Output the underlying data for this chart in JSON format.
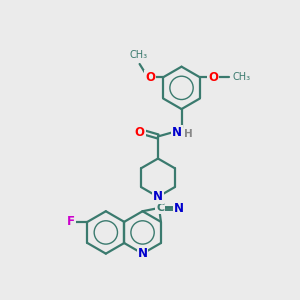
{
  "bg_color": "#ebebeb",
  "bond_color": "#3a7a6e",
  "atom_colors": {
    "O": "#ff0000",
    "N": "#0000cc",
    "F": "#cc00cc",
    "H": "#888888",
    "C": "#3a7a6e"
  },
  "line_width": 1.6,
  "fig_size": [
    3.0,
    3.0
  ],
  "dpi": 100
}
